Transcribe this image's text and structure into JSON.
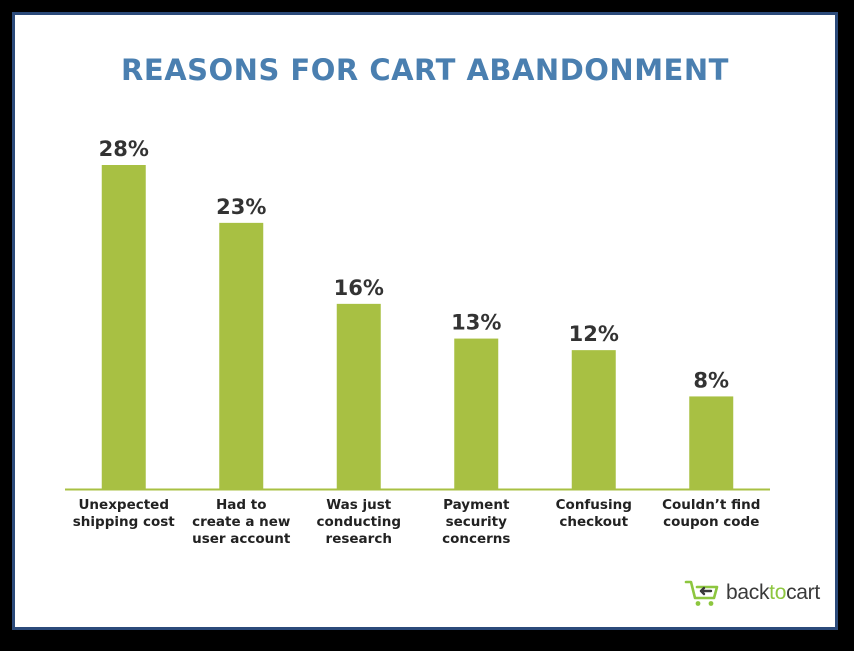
{
  "chart_data": {
    "type": "bar",
    "title": "REASONS FOR CART ABANDONMENT",
    "categories": [
      [
        "Unexpected",
        "shipping cost"
      ],
      [
        "Had to",
        "create a new",
        "user account"
      ],
      [
        "Was just",
        "conducting",
        "research"
      ],
      [
        "Payment",
        "security",
        "concerns"
      ],
      [
        "Confusing",
        "checkout"
      ],
      [
        "Couldn’t find",
        "coupon code"
      ]
    ],
    "values": [
      28,
      23,
      16,
      13,
      12,
      8
    ],
    "value_labels": [
      "28%",
      "23%",
      "16%",
      "13%",
      "12%",
      "8%"
    ],
    "ylim": [
      0,
      28
    ],
    "grid": false,
    "colors": {
      "bar": "#a8c043",
      "title": "#4a7fb0",
      "baseline": "#a8c043"
    }
  },
  "brand": {
    "name_part1": "back",
    "name_part2": "to",
    "name_part3": "cart",
    "icon": "cart-arrow-icon",
    "colors": {
      "dark": "#3a3a3a",
      "green": "#8dc63f"
    }
  }
}
